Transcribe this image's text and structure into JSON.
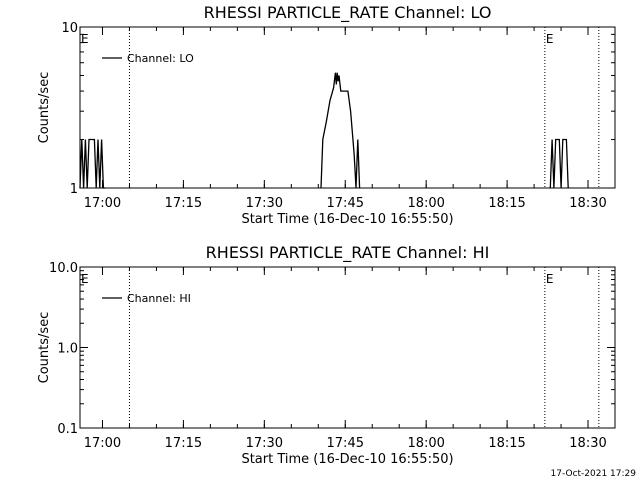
{
  "chart_data": [
    {
      "type": "line",
      "title": "RHESSI PARTICLE_RATE Channel: LO",
      "xlabel": "Start Time (16-Dec-10 16:55:50)",
      "ylabel": "Counts/sec",
      "yscale": "log",
      "ylim": [
        1,
        10
      ],
      "yticks": [
        1,
        10
      ],
      "ytick_labels": [
        "1",
        "10"
      ],
      "xlim": [
        "16:55:50",
        "18:35:00"
      ],
      "xticks": [
        "17:00",
        "17:15",
        "17:30",
        "17:45",
        "18:00",
        "18:15",
        "18:30"
      ],
      "grid": false,
      "legend": "top-left",
      "series": [
        {
          "name": "Channel: LO",
          "color": "#000000",
          "segments": [
            [
              [
                "16:55:50",
                1
              ],
              [
                "16:56:10",
                2
              ],
              [
                "16:56:30",
                1
              ],
              [
                "16:56:50",
                2
              ],
              [
                "16:57:10",
                1
              ],
              [
                "16:57:30",
                2
              ],
              [
                "16:58:30",
                2
              ],
              [
                "16:58:50",
                1
              ],
              [
                "16:59:10",
                2
              ],
              [
                "16:59:30",
                1
              ],
              [
                "16:59:50",
                2
              ],
              [
                "17:00:10",
                1
              ],
              [
                "17:00:30",
                1
              ]
            ],
            [
              [
                "17:40:30",
                1
              ],
              [
                "17:40:50",
                2
              ],
              [
                "17:41:30",
                2.6
              ],
              [
                "17:42:10",
                3.5
              ],
              [
                "17:42:50",
                4.2
              ],
              [
                "17:43:10",
                5.2
              ],
              [
                "17:43:20",
                4.4
              ],
              [
                "17:43:30",
                5.2
              ],
              [
                "17:43:40",
                4.6
              ],
              [
                "17:43:50",
                5.0
              ],
              [
                "17:44:10",
                4.0
              ],
              [
                "17:45:30",
                4.0
              ],
              [
                "17:46:00",
                3.0
              ],
              [
                "17:46:20",
                2.2
              ],
              [
                "17:46:40",
                1.6
              ],
              [
                "17:47:00",
                1.0
              ],
              [
                "17:47:20",
                2.0
              ],
              [
                "17:47:40",
                1.0
              ]
            ],
            [
              [
                "18:23:00",
                1
              ],
              [
                "18:23:20",
                2
              ],
              [
                "18:23:40",
                1
              ],
              [
                "18:24:00",
                2
              ],
              [
                "18:24:40",
                2
              ],
              [
                "18:25:00",
                1
              ],
              [
                "18:25:20",
                2
              ],
              [
                "18:26:00",
                2
              ],
              [
                "18:26:20",
                1
              ]
            ]
          ]
        }
      ],
      "markers": [
        {
          "time": "16:55:50",
          "label": "E",
          "line": false
        },
        {
          "time": "17:05:00",
          "label": "",
          "line": true
        },
        {
          "time": "18:22:00",
          "label": "E",
          "line": true
        },
        {
          "time": "18:32:00",
          "label": "",
          "line": true
        }
      ]
    },
    {
      "type": "line",
      "title": "RHESSI PARTICLE_RATE Channel: HI",
      "xlabel": "Start Time (16-Dec-10 16:55:50)",
      "ylabel": "Counts/sec",
      "yscale": "log",
      "ylim": [
        0.1,
        10
      ],
      "yticks": [
        0.1,
        1,
        10
      ],
      "ytick_labels": [
        "0.1",
        "1.0",
        "10.0"
      ],
      "xlim": [
        "16:55:50",
        "18:35:00"
      ],
      "xticks": [
        "17:00",
        "17:15",
        "17:30",
        "17:45",
        "18:00",
        "18:15",
        "18:30"
      ],
      "grid": false,
      "legend": "top-left",
      "series": [
        {
          "name": "Channel: HI",
          "color": "#000000",
          "segments": []
        }
      ],
      "markers": [
        {
          "time": "16:55:50",
          "label": "E",
          "line": false
        },
        {
          "time": "17:05:00",
          "label": "",
          "line": true
        },
        {
          "time": "18:22:00",
          "label": "E",
          "line": true
        },
        {
          "time": "18:32:00",
          "label": "",
          "line": true
        }
      ]
    }
  ],
  "timestamp": "17-Oct-2021 17:29"
}
